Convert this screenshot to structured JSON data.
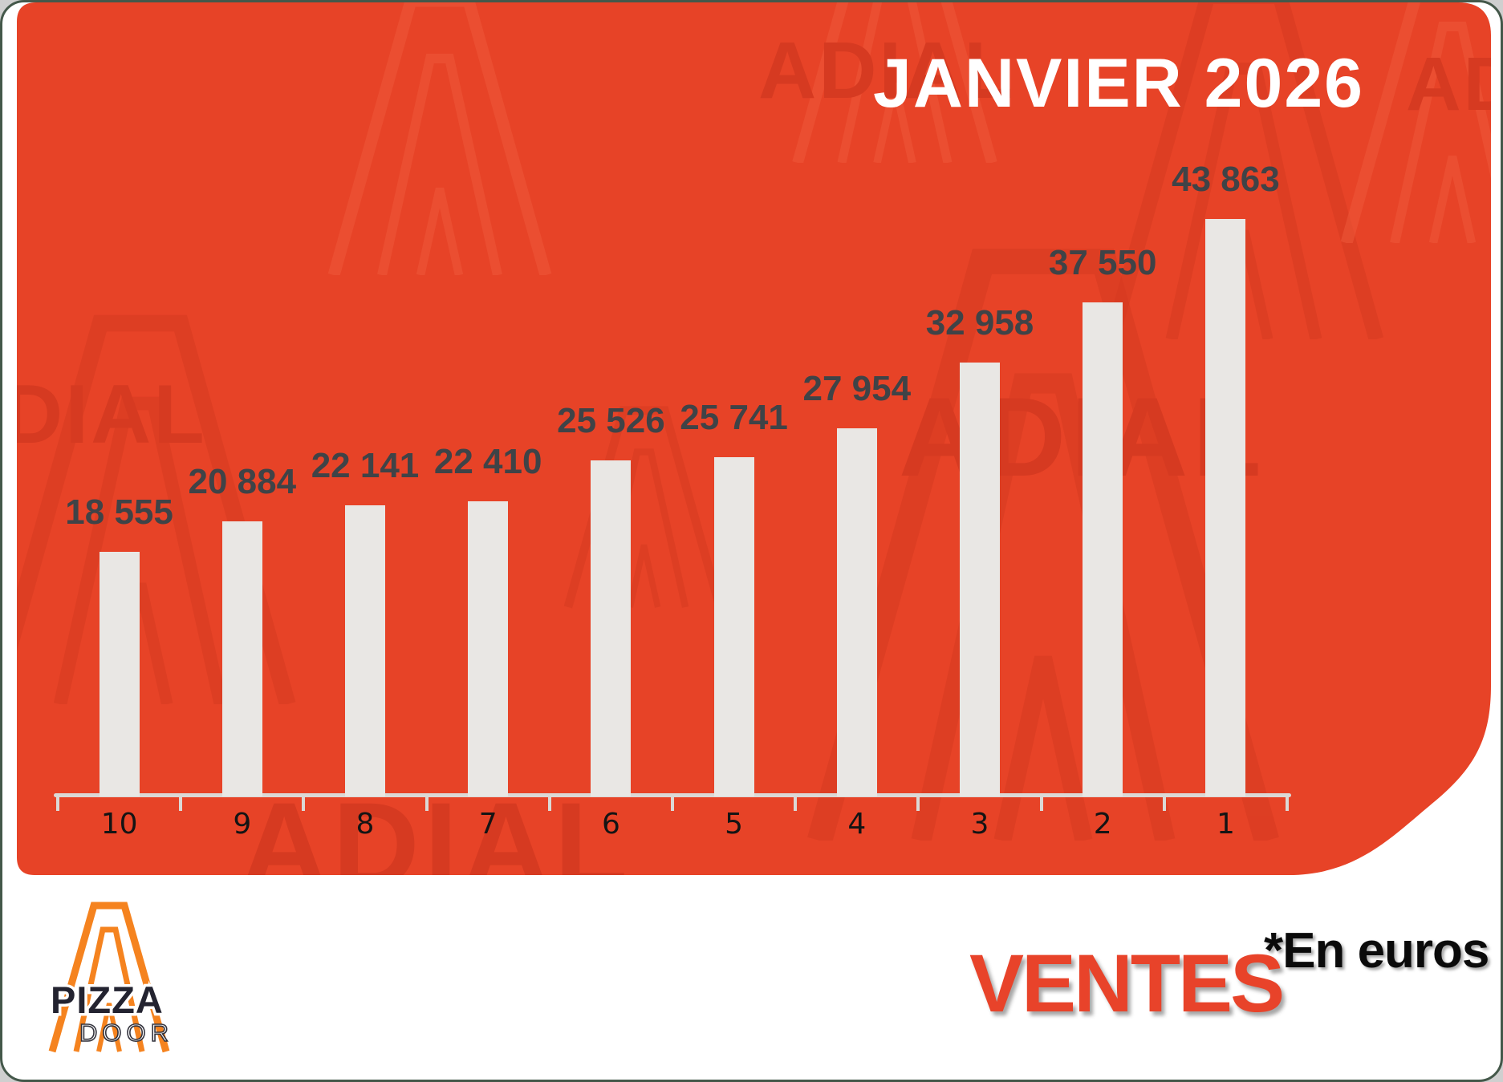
{
  "title": "JANVIER 2026",
  "watermark": {
    "text": "ADIAL"
  },
  "footer": {
    "ventes_label": "VENTES",
    "unit_note": "*En euros"
  },
  "logo": {
    "line1": "PIZZA",
    "line2": "DOOR"
  },
  "colors": {
    "panel_orange": "#e74327",
    "watermark_red": "#d63a21",
    "bar_gray": "#e9e7e4",
    "value_label": "#3f4347",
    "ventes_orange": "#e8432a",
    "title_white": "#ffffff"
  },
  "chart_data": {
    "type": "bar",
    "title": "JANVIER 2026",
    "categories": [
      "10",
      "9",
      "8",
      "7",
      "6",
      "5",
      "4",
      "3",
      "2",
      "1"
    ],
    "values": [
      18555,
      20884,
      22141,
      22410,
      25526,
      25741,
      27954,
      32958,
      37550,
      43863
    ],
    "value_labels": [
      "18 555",
      "20 884",
      "22 141",
      "22 410",
      "25 526",
      "25 741",
      "27 954",
      "32 958",
      "37 550",
      "43 863"
    ],
    "xlabel": "",
    "ylabel": "Ventes (euros)",
    "ylim": [
      0,
      45000
    ],
    "grid": false,
    "legend": null,
    "bar_color": "#e9e7e4",
    "background_color": "#e74327"
  }
}
